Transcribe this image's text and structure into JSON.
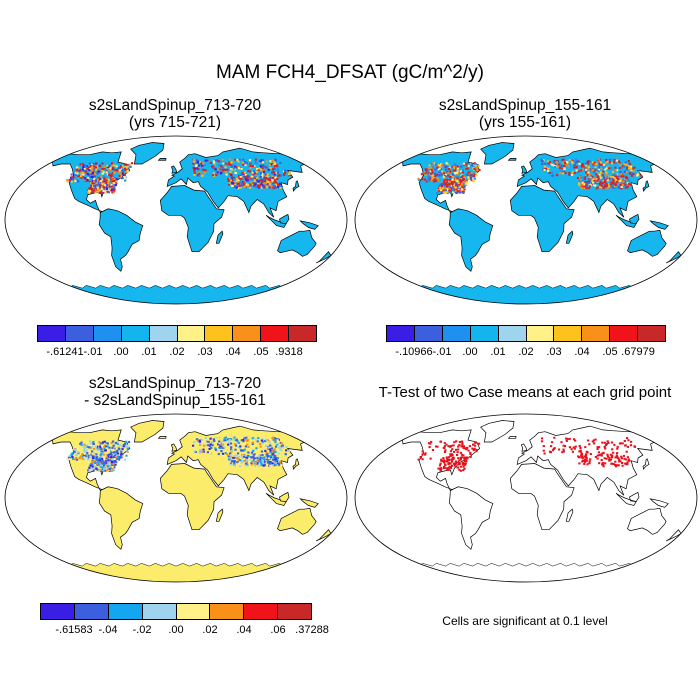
{
  "title": "MAM FCH4_DFSAT (gC/m^2/y)",
  "panels": {
    "p1": {
      "line1": "s2sLandSpinup_713-720",
      "line2": "(yrs 715-721)"
    },
    "p2": {
      "line1": "s2sLandSpinup_155-161",
      "line2": "(yrs 155-161)"
    },
    "p3": {
      "line1": "s2sLandSpinup_713-720",
      "line2": "- s2sLandSpinup_155-161"
    },
    "p4": {
      "line1": "T-Test of two Case means at each grid point"
    }
  },
  "colorbars": {
    "cb1": {
      "labels": [
        "-.61241",
        "-.01",
        ".00",
        ".01",
        ".02",
        ".03",
        ".04",
        ".05",
        ".9318"
      ]
    },
    "cb2": {
      "labels": [
        "-.10966",
        "-.01",
        ".00",
        ".01",
        ".02",
        ".03",
        ".04",
        ".05",
        ".67979"
      ]
    },
    "cb3": {
      "labels": [
        "-.61583",
        "-.04",
        "-.02",
        ".00",
        ".02",
        ".04",
        ".06",
        ".37288"
      ]
    }
  },
  "colors": {
    "cb_ten": [
      "#3a1ee6",
      "#3c5fe0",
      "#1e90f0",
      "#14b4ee",
      "#9ed4ee",
      "#fff088",
      "#fdc21e",
      "#f8901a",
      "#f0141a",
      "#c82828"
    ],
    "cb_eight": [
      "#3a1ee6",
      "#3c5fe0",
      "#14a6ee",
      "#9ed4ee",
      "#fff088",
      "#f8901a",
      "#f0141a",
      "#c82828"
    ],
    "ocean": "#ffffff",
    "land_base_top": "#16b6ee",
    "land_base_diff": "#fbec6c",
    "ttest_mark": "#e8101a"
  },
  "note": "Cells are significant at 0.1 level"
}
